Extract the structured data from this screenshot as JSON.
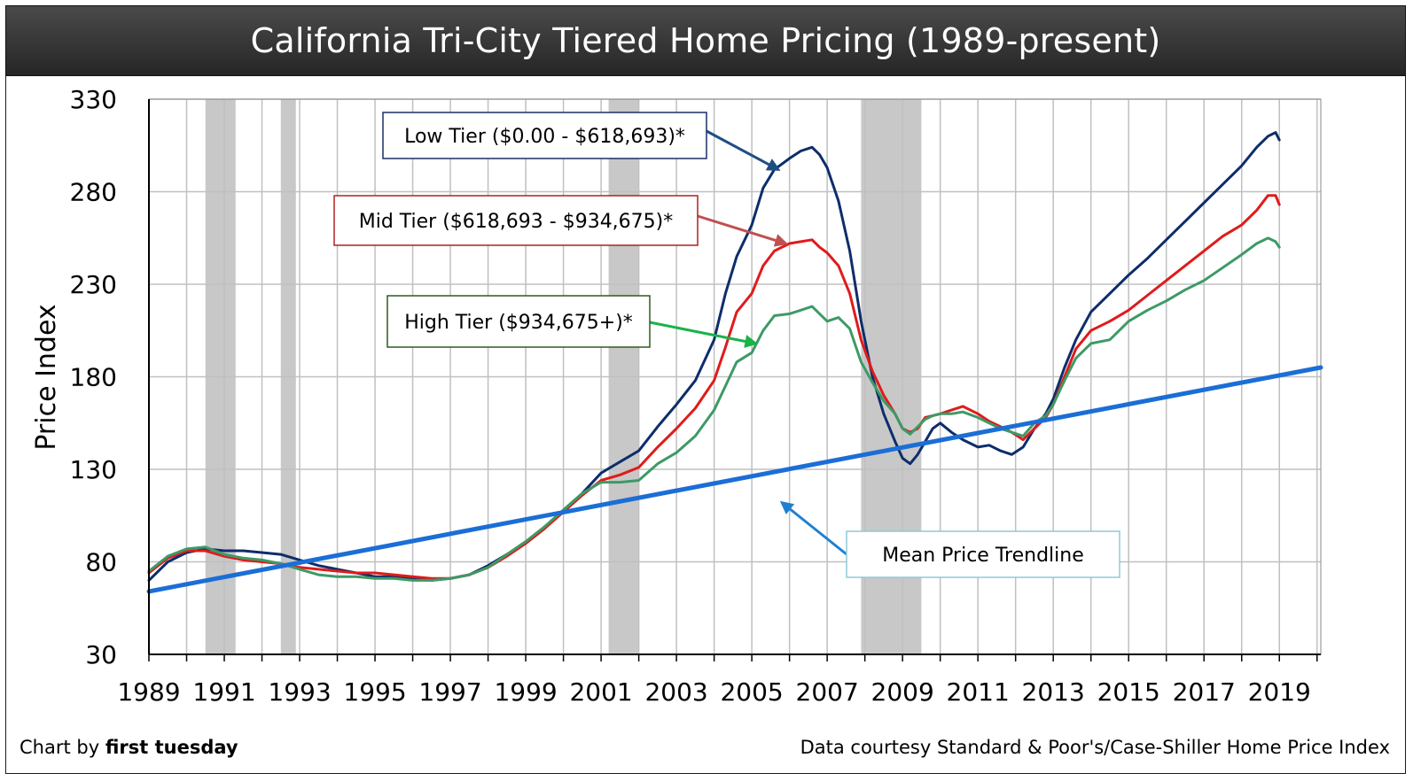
{
  "chart_data": {
    "type": "line",
    "title": "California Tri-City Tiered Home Pricing (1989-present)",
    "ylabel": "Price Index",
    "xlabel": "",
    "ylim": [
      30,
      330
    ],
    "xlim": [
      1989,
      2020.1
    ],
    "y_ticks": [
      "30",
      "80",
      "130",
      "180",
      "230",
      "280",
      "330"
    ],
    "x_ticks": [
      "1989",
      "1991",
      "1993",
      "1995",
      "1997",
      "1999",
      "2001",
      "2003",
      "2005",
      "2007",
      "2009",
      "2011",
      "2013",
      "2015",
      "2017",
      "2019"
    ],
    "grid": true,
    "recession_bands": [
      [
        1990.5,
        1991.3
      ],
      [
        1992.5,
        1992.9
      ],
      [
        2001.2,
        2002.0
      ],
      [
        2007.9,
        2009.5
      ]
    ],
    "colors": {
      "low": "#0d2d6b",
      "mid": "#e01b1b",
      "high": "#3d9a66",
      "trend": "#1b6ed6",
      "band": "#c8c8c8",
      "grid": "#c0c0c0"
    },
    "series": [
      {
        "key": "low",
        "name": "Low Tier ($0.00 - $618,693)*",
        "x": [
          1989,
          1989.5,
          1990,
          1990.5,
          1991,
          1991.5,
          1992,
          1992.5,
          1993,
          1993.5,
          1994,
          1994.5,
          1995,
          1995.5,
          1996,
          1996.5,
          1997,
          1997.5,
          1998,
          1998.5,
          1999,
          1999.5,
          2000,
          2000.5,
          2001,
          2001.5,
          2002,
          2002.5,
          2003,
          2003.5,
          2004,
          2004.3,
          2004.6,
          2005,
          2005.3,
          2005.6,
          2006,
          2006.3,
          2006.6,
          2006.8,
          2007,
          2007.3,
          2007.6,
          2007.9,
          2008.2,
          2008.5,
          2008.8,
          2009,
          2009.2,
          2009.4,
          2009.6,
          2009.8,
          2010,
          2010.3,
          2010.6,
          2011,
          2011.3,
          2011.6,
          2011.9,
          2012.2,
          2012.5,
          2012.8,
          2013,
          2013.3,
          2013.6,
          2014,
          2014.5,
          2015,
          2015.5,
          2016,
          2016.5,
          2017,
          2017.5,
          2018,
          2018.4,
          2018.7,
          2018.9,
          2019
        ],
        "values": [
          70,
          80,
          85,
          87,
          86,
          86,
          85,
          84,
          81,
          78,
          76,
          74,
          72,
          72,
          71,
          70,
          71,
          73,
          78,
          84,
          90,
          98,
          108,
          117,
          128,
          134,
          140,
          153,
          165,
          178,
          200,
          225,
          245,
          262,
          282,
          292,
          298,
          302,
          304,
          300,
          293,
          275,
          248,
          210,
          180,
          160,
          145,
          136,
          133,
          138,
          145,
          152,
          155,
          150,
          146,
          142,
          143,
          140,
          138,
          142,
          152,
          160,
          168,
          185,
          200,
          215,
          225,
          235,
          244,
          254,
          264,
          274,
          284,
          294,
          304,
          310,
          312,
          308
        ]
      },
      {
        "key": "mid",
        "name": "Mid Tier ($618,693 - $934,675)*",
        "x": [
          1989,
          1989.5,
          1990,
          1990.5,
          1991,
          1991.5,
          1992,
          1992.5,
          1993,
          1993.5,
          1994,
          1994.5,
          1995,
          1995.5,
          1996,
          1996.5,
          1997,
          1997.5,
          1998,
          1998.5,
          1999,
          1999.5,
          2000,
          2000.5,
          2001,
          2001.5,
          2002,
          2002.5,
          2003,
          2003.5,
          2004,
          2004.3,
          2004.6,
          2005,
          2005.3,
          2005.6,
          2006,
          2006.3,
          2006.6,
          2006.8,
          2007,
          2007.3,
          2007.6,
          2007.9,
          2008.2,
          2008.5,
          2008.8,
          2009,
          2009.2,
          2009.4,
          2009.6,
          2009.8,
          2010,
          2010.3,
          2010.6,
          2011,
          2011.3,
          2011.6,
          2011.9,
          2012.2,
          2012.5,
          2012.8,
          2013,
          2013.3,
          2013.6,
          2014,
          2014.5,
          2015,
          2015.5,
          2016,
          2016.5,
          2017,
          2017.5,
          2018,
          2018.4,
          2018.7,
          2018.9,
          2019
        ],
        "values": [
          74,
          82,
          86,
          86,
          83,
          81,
          80,
          79,
          77,
          76,
          75,
          74,
          74,
          73,
          72,
          71,
          71,
          73,
          77,
          83,
          90,
          98,
          107,
          116,
          124,
          127,
          131,
          142,
          152,
          163,
          178,
          196,
          215,
          225,
          240,
          248,
          252,
          253,
          254,
          250,
          247,
          240,
          225,
          200,
          183,
          170,
          160,
          152,
          150,
          152,
          158,
          159,
          160,
          162,
          164,
          160,
          156,
          153,
          150,
          146,
          152,
          158,
          165,
          180,
          195,
          205,
          210,
          216,
          224,
          232,
          240,
          248,
          256,
          262,
          270,
          278,
          278,
          273
        ]
      },
      {
        "key": "high",
        "name": "High Tier ($934,675+)*",
        "x": [
          1989,
          1989.5,
          1990,
          1990.5,
          1991,
          1991.5,
          1992,
          1992.5,
          1993,
          1993.5,
          1994,
          1994.5,
          1995,
          1995.5,
          1996,
          1996.5,
          1997,
          1997.5,
          1998,
          1998.5,
          1999,
          1999.5,
          2000,
          2000.5,
          2001,
          2001.5,
          2002,
          2002.5,
          2003,
          2003.5,
          2004,
          2004.3,
          2004.6,
          2005,
          2005.3,
          2005.6,
          2006,
          2006.3,
          2006.6,
          2006.8,
          2007,
          2007.3,
          2007.6,
          2007.9,
          2008.2,
          2008.5,
          2008.8,
          2009,
          2009.2,
          2009.4,
          2009.6,
          2009.8,
          2010,
          2010.3,
          2010.6,
          2011,
          2011.3,
          2011.6,
          2011.9,
          2012.2,
          2012.5,
          2012.8,
          2013,
          2013.3,
          2013.6,
          2014,
          2014.5,
          2015,
          2015.5,
          2016,
          2016.5,
          2017,
          2017.5,
          2018,
          2018.4,
          2018.7,
          2018.9,
          2019
        ],
        "values": [
          75,
          83,
          87,
          88,
          84,
          82,
          81,
          79,
          76,
          73,
          72,
          72,
          71,
          71,
          70,
          70,
          71,
          73,
          77,
          84,
          91,
          99,
          108,
          117,
          123,
          123,
          124,
          133,
          139,
          148,
          162,
          175,
          188,
          193,
          205,
          213,
          214,
          216,
          218,
          214,
          210,
          212,
          206,
          188,
          177,
          167,
          160,
          152,
          149,
          153,
          157,
          159,
          160,
          160,
          161,
          158,
          155,
          152,
          150,
          148,
          155,
          159,
          165,
          178,
          190,
          198,
          200,
          210,
          216,
          221,
          227,
          232,
          239,
          246,
          252,
          255,
          253,
          250
        ]
      },
      {
        "key": "trend",
        "name": "Mean Price Trendline",
        "x": [
          1989,
          2020.1
        ],
        "values": [
          64,
          185
        ]
      }
    ],
    "annotations": [
      {
        "key": "low",
        "text": "Low Tier ($0.00 - $618,693)*",
        "target": [
          2005.7,
          292
        ]
      },
      {
        "key": "mid",
        "text": "Mid Tier ($618,693 - $934,675)*",
        "target": [
          2005.9,
          252
        ]
      },
      {
        "key": "high",
        "text": "High Tier ($934,675+)*",
        "target": [
          2005.1,
          198
        ]
      },
      {
        "key": "trend",
        "text": "Mean Price Trendline",
        "target": [
          2005.8,
          112
        ]
      }
    ]
  },
  "footer": {
    "credit_prefix": "Chart by",
    "credit_name": "first tuesday",
    "source": "Data courtesy Standard & Poor's/Case-Shiller Home Price Index"
  }
}
